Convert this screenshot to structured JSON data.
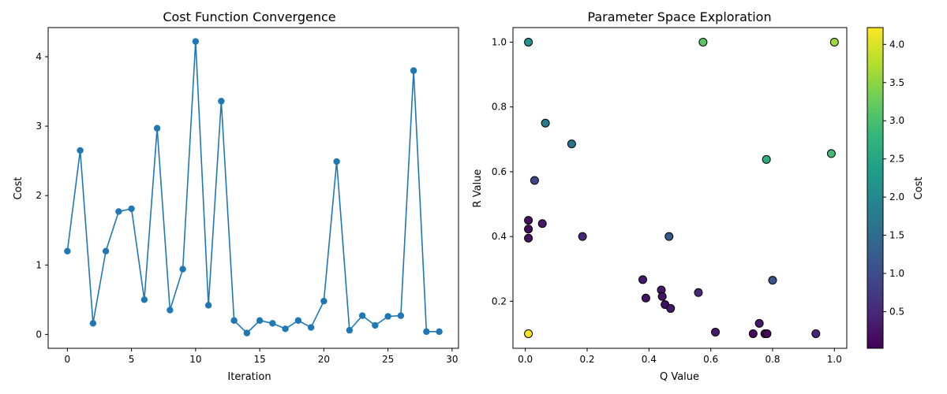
{
  "chart_data": [
    {
      "type": "line",
      "title": "Cost Function Convergence",
      "xlabel": "Iteration",
      "ylabel": "Cost",
      "xlim": [
        -1.5,
        30.5
      ],
      "ylim": [
        -0.2,
        4.42
      ],
      "xticks": [
        0,
        5,
        10,
        15,
        20,
        25,
        30
      ],
      "yticks": [
        0,
        1,
        2,
        3,
        4
      ],
      "color": "#1f77b4",
      "markers": true,
      "x": [
        0,
        1,
        2,
        3,
        4,
        5,
        6,
        7,
        8,
        9,
        10,
        11,
        12,
        13,
        14,
        15,
        16,
        17,
        18,
        19,
        20,
        21,
        22,
        23,
        24,
        25,
        26,
        27,
        28,
        29
      ],
      "values": [
        1.2,
        2.65,
        0.16,
        1.2,
        1.77,
        1.81,
        0.5,
        2.97,
        0.35,
        0.94,
        4.22,
        0.42,
        3.36,
        0.2,
        0.02,
        0.2,
        0.16,
        0.08,
        0.2,
        0.1,
        0.48,
        2.49,
        0.06,
        0.27,
        0.13,
        0.26,
        0.27,
        3.8,
        0.04,
        0.04
      ]
    },
    {
      "type": "scatter",
      "title": "Parameter Space Exploration",
      "xlabel": "Q Value",
      "ylabel": "R Value",
      "xlim": [
        -0.04,
        1.04
      ],
      "ylim": [
        0.055,
        1.045
      ],
      "xticks": [
        "0.0",
        "0.2",
        "0.4",
        "0.6",
        "0.8",
        "1.0"
      ],
      "yticks": [
        "0.2",
        "0.4",
        "0.6",
        "0.8",
        "1.0"
      ],
      "colormap": "viridis",
      "colorbar": {
        "label": "Cost",
        "range": [
          0.02,
          4.22
        ],
        "ticks": [
          "0.5",
          "1.0",
          "1.5",
          "2.0",
          "2.5",
          "3.0",
          "3.5",
          "4.0"
        ]
      },
      "points": [
        {
          "q": 0.01,
          "r": 0.1,
          "cost": 4.22
        },
        {
          "q": 0.01,
          "r": 1.0,
          "cost": 2.2
        },
        {
          "q": 0.575,
          "r": 1.0,
          "cost": 3.1
        },
        {
          "q": 1.0,
          "r": 1.0,
          "cost": 3.6
        },
        {
          "q": 0.065,
          "r": 0.75,
          "cost": 1.75
        },
        {
          "q": 0.15,
          "r": 0.686,
          "cost": 1.6
        },
        {
          "q": 0.78,
          "r": 0.638,
          "cost": 2.65
        },
        {
          "q": 0.99,
          "r": 0.656,
          "cost": 2.9
        },
        {
          "q": 0.03,
          "r": 0.573,
          "cost": 0.9
        },
        {
          "q": 0.01,
          "r": 0.45,
          "cost": 0.2
        },
        {
          "q": 0.01,
          "r": 0.423,
          "cost": 0.15
        },
        {
          "q": 0.01,
          "r": 0.395,
          "cost": 0.2
        },
        {
          "q": 0.055,
          "r": 0.44,
          "cost": 0.3
        },
        {
          "q": 0.185,
          "r": 0.4,
          "cost": 0.45
        },
        {
          "q": 0.465,
          "r": 0.4,
          "cost": 1.2
        },
        {
          "q": 0.38,
          "r": 0.267,
          "cost": 0.3
        },
        {
          "q": 0.39,
          "r": 0.21,
          "cost": 0.2
        },
        {
          "q": 0.44,
          "r": 0.235,
          "cost": 0.3
        },
        {
          "q": 0.443,
          "r": 0.215,
          "cost": 0.25
        },
        {
          "q": 0.452,
          "r": 0.19,
          "cost": 0.2
        },
        {
          "q": 0.47,
          "r": 0.178,
          "cost": 0.3
        },
        {
          "q": 0.56,
          "r": 0.227,
          "cost": 0.48
        },
        {
          "q": 0.615,
          "r": 0.105,
          "cost": 0.3
        },
        {
          "q": 0.737,
          "r": 0.1,
          "cost": 0.1
        },
        {
          "q": 0.757,
          "r": 0.132,
          "cost": 0.3
        },
        {
          "q": 0.775,
          "r": 0.1,
          "cost": 0.2
        },
        {
          "q": 0.782,
          "r": 0.1,
          "cost": 0.15
        },
        {
          "q": 0.8,
          "r": 0.265,
          "cost": 1.1
        },
        {
          "q": 0.94,
          "r": 0.1,
          "cost": 0.45
        }
      ]
    }
  ]
}
